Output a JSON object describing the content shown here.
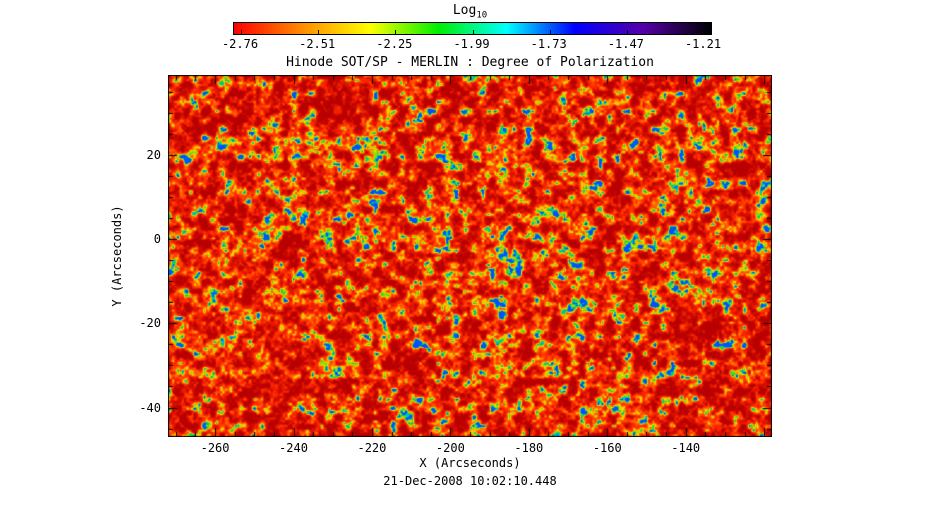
{
  "figure": {
    "background": "#ffffff",
    "text_color": "#000000"
  },
  "colorbar": {
    "label": "Log",
    "label_sub": "10",
    "tick_labels": [
      "-2.76",
      "-2.51",
      "-2.25",
      "-1.99",
      "-1.73",
      "-1.47",
      "-1.21"
    ],
    "gradient": [
      "#ff0000",
      "#ff8c00",
      "#ffff00",
      "#00ee00",
      "#00ffff",
      "#0000ff",
      "#5500aa",
      "#000000"
    ]
  },
  "chart_data": {
    "type": "heatmap",
    "title": "Hinode SOT/SP - MERLIN : Degree of Polarization",
    "xlabel": "X (Arcseconds)",
    "ylabel": "Y (Arcseconds)",
    "timestamp": "21-Dec-2008 10:02:10.448",
    "x_ticks": [
      -260,
      -240,
      -220,
      -200,
      -180,
      -160,
      -140
    ],
    "x_tick_labels": [
      "-260",
      "-240",
      "-220",
      "-200",
      "-180",
      "-160",
      "-140"
    ],
    "y_ticks": [
      20,
      0,
      -20,
      -40
    ],
    "y_tick_labels": [
      "20",
      "0",
      "-20",
      "-40"
    ],
    "xlim": [
      -272,
      -118
    ],
    "ylim": [
      -47,
      39
    ],
    "minor_tick_step": 5,
    "colorbar_scale": {
      "label": "Log10",
      "ticks": [
        -2.76,
        -2.51,
        -2.25,
        -1.99,
        -1.73,
        -1.47,
        -1.21
      ],
      "range": [
        -2.76,
        -1.21
      ]
    },
    "value_description": "log10 degree of polarization map; field dominated by values near -2.7 (red/orange) with a mottled yellow-green granulation network and sparse bright patches up to about -1.7 (cyan/blue)",
    "heatmap_colormap": [
      {
        "p": 0.0,
        "rgb": [
          185,
          0,
          0
        ]
      },
      {
        "p": 0.3,
        "rgb": [
          255,
          40,
          0
        ]
      },
      {
        "p": 0.52,
        "rgb": [
          255,
          110,
          0
        ]
      },
      {
        "p": 0.66,
        "rgb": [
          255,
          215,
          0
        ]
      },
      {
        "p": 0.78,
        "rgb": [
          130,
          220,
          0
        ]
      },
      {
        "p": 0.87,
        "rgb": [
          0,
          195,
          110
        ]
      },
      {
        "p": 0.94,
        "rgb": [
          0,
          205,
          205
        ]
      },
      {
        "p": 1.0,
        "rgb": [
          0,
          80,
          255
        ]
      }
    ],
    "noise_seed": 7
  }
}
